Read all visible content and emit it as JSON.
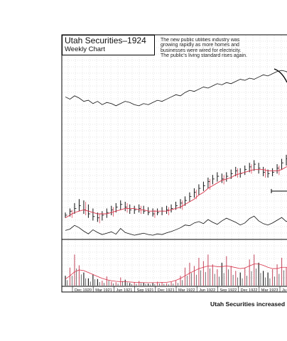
{
  "header": {
    "title": "Utah Securities–1924",
    "subtitle": "Weekly Chart"
  },
  "annotation_lines": [
    "The new public utilities industry was",
    "growing rapidly as more homes and",
    "businesses were wired for electricity.",
    "The public's living standard rises again."
  ],
  "caption": "Utah Securities increased",
  "colors": {
    "ink": "#111111",
    "moving_average": "#d9334a",
    "volume_up": "#c8556a",
    "grid": "#bdbdbd"
  },
  "chart_data": {
    "type": "line",
    "title": "Utah Securities–1924",
    "subtitle": "Weekly Chart",
    "x_tick_labels": [
      "Dec 1920",
      "Mar 1921",
      "Jun 1921",
      "Sep 1921",
      "Dec 1921",
      "Mar 1922",
      "Jun 1922",
      "Sep 1922",
      "Dec 1922",
      "Mar 1923",
      "Ju"
    ],
    "grid": true,
    "price_axis_labels": "not shown",
    "weekly_bars_relative": [
      {
        "h": 0.9,
        "l": 0.86,
        "c": 0.88
      },
      {
        "h": 0.93,
        "l": 0.87,
        "c": 0.91
      },
      {
        "h": 0.97,
        "l": 0.89,
        "c": 0.93
      },
      {
        "h": 1.0,
        "l": 0.91,
        "c": 0.95
      },
      {
        "h": 0.99,
        "l": 0.89,
        "c": 0.92
      },
      {
        "h": 0.96,
        "l": 0.86,
        "c": 0.89
      },
      {
        "h": 0.93,
        "l": 0.84,
        "c": 0.87
      },
      {
        "h": 0.9,
        "l": 0.83,
        "c": 0.86
      },
      {
        "h": 0.91,
        "l": 0.84,
        "c": 0.88
      },
      {
        "h": 0.93,
        "l": 0.86,
        "c": 0.9
      },
      {
        "h": 0.95,
        "l": 0.88,
        "c": 0.92
      },
      {
        "h": 0.97,
        "l": 0.9,
        "c": 0.94
      },
      {
        "h": 0.99,
        "l": 0.92,
        "c": 0.96
      },
      {
        "h": 0.98,
        "l": 0.91,
        "c": 0.94
      },
      {
        "h": 0.96,
        "l": 0.89,
        "c": 0.92
      },
      {
        "h": 0.95,
        "l": 0.89,
        "c": 0.92
      },
      {
        "h": 0.96,
        "l": 0.9,
        "c": 0.93
      },
      {
        "h": 0.95,
        "l": 0.89,
        "c": 0.91
      },
      {
        "h": 0.94,
        "l": 0.88,
        "c": 0.9
      },
      {
        "h": 0.93,
        "l": 0.87,
        "c": 0.89
      },
      {
        "h": 0.93,
        "l": 0.88,
        "c": 0.9
      },
      {
        "h": 0.94,
        "l": 0.88,
        "c": 0.91
      },
      {
        "h": 0.95,
        "l": 0.89,
        "c": 0.92
      },
      {
        "h": 0.96,
        "l": 0.9,
        "c": 0.93
      },
      {
        "h": 0.98,
        "l": 0.92,
        "c": 0.95
      },
      {
        "h": 1.0,
        "l": 0.93,
        "c": 0.97
      },
      {
        "h": 1.02,
        "l": 0.95,
        "c": 0.99
      },
      {
        "h": 1.05,
        "l": 0.98,
        "c": 1.02
      },
      {
        "h": 1.08,
        "l": 1.01,
        "c": 1.05
      },
      {
        "h": 1.11,
        "l": 1.03,
        "c": 1.08
      },
      {
        "h": 1.13,
        "l": 1.06,
        "c": 1.1
      },
      {
        "h": 1.16,
        "l": 1.08,
        "c": 1.13
      },
      {
        "h": 1.18,
        "l": 1.11,
        "c": 1.15
      },
      {
        "h": 1.2,
        "l": 1.13,
        "c": 1.17
      },
      {
        "h": 1.19,
        "l": 1.12,
        "c": 1.15
      },
      {
        "h": 1.2,
        "l": 1.13,
        "c": 1.17
      },
      {
        "h": 1.22,
        "l": 1.15,
        "c": 1.19
      },
      {
        "h": 1.24,
        "l": 1.17,
        "c": 1.21
      },
      {
        "h": 1.23,
        "l": 1.16,
        "c": 1.19
      },
      {
        "h": 1.25,
        "l": 1.18,
        "c": 1.22
      },
      {
        "h": 1.27,
        "l": 1.2,
        "c": 1.24
      },
      {
        "h": 1.29,
        "l": 1.21,
        "c": 1.26
      },
      {
        "h": 1.27,
        "l": 1.19,
        "c": 1.23
      },
      {
        "h": 1.24,
        "l": 1.17,
        "c": 1.2
      },
      {
        "h": 1.22,
        "l": 1.16,
        "c": 1.19
      },
      {
        "h": 1.23,
        "l": 1.17,
        "c": 1.2
      },
      {
        "h": 1.26,
        "l": 1.19,
        "c": 1.23
      },
      {
        "h": 1.3,
        "l": 1.22,
        "c": 1.27
      },
      {
        "h": 1.33,
        "l": 1.25,
        "c": 1.3
      },
      {
        "h": 1.31,
        "l": 1.24,
        "c": 1.28
      },
      {
        "h": 1.29,
        "l": 1.22,
        "c": 1.26
      }
    ],
    "moving_average_relative": [
      0.86,
      0.88,
      0.9,
      0.91,
      0.92,
      0.91,
      0.9,
      0.89,
      0.89,
      0.89,
      0.9,
      0.91,
      0.92,
      0.93,
      0.93,
      0.93,
      0.92,
      0.92,
      0.91,
      0.91,
      0.91,
      0.91,
      0.91,
      0.92,
      0.93,
      0.94,
      0.96,
      0.98,
      1.0,
      1.03,
      1.05,
      1.08,
      1.1,
      1.12,
      1.14,
      1.15,
      1.16,
      1.18,
      1.19,
      1.2,
      1.21,
      1.22,
      1.22,
      1.22,
      1.21,
      1.21,
      1.21,
      1.22,
      1.24,
      1.25,
      1.26
    ],
    "relative_strength_relative": [
      0.5,
      0.48,
      0.51,
      0.49,
      0.46,
      0.47,
      0.44,
      0.46,
      0.43,
      0.45,
      0.44,
      0.42,
      0.44,
      0.46,
      0.45,
      0.43,
      0.42,
      0.44,
      0.43,
      0.45,
      0.47,
      0.46,
      0.48,
      0.5,
      0.52,
      0.51,
      0.54,
      0.56,
      0.55,
      0.57,
      0.59,
      0.58,
      0.6,
      0.62,
      0.61,
      0.63,
      0.62,
      0.64,
      0.66,
      0.65,
      0.67,
      0.66,
      0.68,
      0.7,
      0.69,
      0.71,
      0.73,
      0.74,
      0.73,
      0.7,
      0.66
    ],
    "lower_line_relative": [
      0.2,
      0.24,
      0.35,
      0.28,
      0.18,
      0.1,
      0.22,
      0.14,
      0.08,
      0.12,
      0.16,
      0.09,
      0.26,
      0.14,
      0.1,
      0.06,
      0.09,
      0.12,
      0.08,
      0.06,
      0.1,
      0.08,
      0.13,
      0.17,
      0.22,
      0.28,
      0.36,
      0.34,
      0.42,
      0.46,
      0.4,
      0.52,
      0.44,
      0.38,
      0.48,
      0.56,
      0.5,
      0.44,
      0.36,
      0.42,
      0.55,
      0.62,
      0.48,
      0.4,
      0.36,
      0.42,
      0.5,
      0.58,
      0.46,
      0.54,
      0.52
    ],
    "volume_relative": [
      0.3,
      0.55,
      0.95,
      0.62,
      0.4,
      0.22,
      0.35,
      0.2,
      0.15,
      0.28,
      0.12,
      0.1,
      0.25,
      0.18,
      0.08,
      0.1,
      0.14,
      0.09,
      0.06,
      0.08,
      0.12,
      0.1,
      0.07,
      0.11,
      0.15,
      0.3,
      0.55,
      0.7,
      0.6,
      0.85,
      0.75,
      0.95,
      0.65,
      0.5,
      0.7,
      0.9,
      0.6,
      0.45,
      0.4,
      0.55,
      0.8,
      0.95,
      0.7,
      0.45,
      0.4,
      0.5,
      0.65,
      0.85,
      0.55,
      0.6,
      0.5
    ],
    "volume_average_relative": [
      0.2,
      0.3,
      0.42,
      0.48,
      0.46,
      0.4,
      0.34,
      0.28,
      0.22,
      0.18,
      0.15,
      0.13,
      0.12,
      0.12,
      0.11,
      0.1,
      0.1,
      0.09,
      0.09,
      0.09,
      0.09,
      0.1,
      0.1,
      0.12,
      0.16,
      0.22,
      0.3,
      0.38,
      0.45,
      0.52,
      0.56,
      0.6,
      0.6,
      0.58,
      0.58,
      0.6,
      0.58,
      0.55,
      0.52,
      0.54,
      0.6,
      0.66,
      0.66,
      0.62,
      0.56,
      0.52,
      0.52,
      0.56,
      0.56,
      0.55,
      0.54
    ]
  }
}
